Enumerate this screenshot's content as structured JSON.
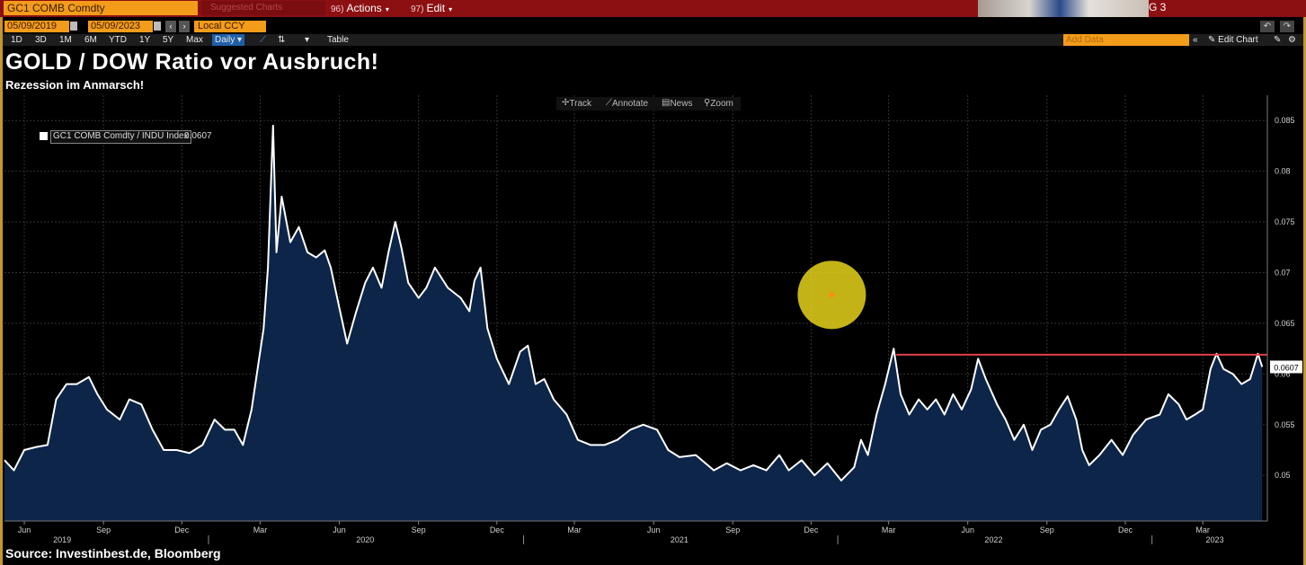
{
  "header": {
    "ticker": "GC1 COMB Comdty",
    "suggested": "Suggested Charts",
    "actions_num": "96)",
    "actions_label": "Actions",
    "edit_num": "97)",
    "edit_label": "Edit",
    "g_label": "G 3"
  },
  "datebar": {
    "start": "05/09/2019",
    "end": "05/09/2023",
    "currency": "Local CCY"
  },
  "rangebar": {
    "ranges": [
      "1D",
      "3D",
      "1M",
      "6M",
      "YTD",
      "1Y",
      "5Y",
      "Max"
    ],
    "frequency": "Daily",
    "table_label": "Table",
    "add_data": "Add Data",
    "edit_chart": "Edit Chart"
  },
  "chart_tools": [
    "Track",
    "Annotate",
    "News",
    "Zoom"
  ],
  "page": {
    "title": "GOLD / DOW Ratio vor Ausbruch!",
    "subtitle": "Rezession im Anmarsch!",
    "source": "Source: Investinbest.de, Bloomberg"
  },
  "colors": {
    "line": "#ffffff",
    "area": "#0c2548",
    "resistance": "#e0404a",
    "highlight": "#e6d21a",
    "command_bar": "#8c0f12",
    "amber": "#f39c1a"
  },
  "chart_data": {
    "type": "area",
    "title": "GOLD / DOW Ratio vor Ausbruch!",
    "subtitle": "Rezession im Anmarsch!",
    "series": [
      {
        "name": "GC1 COMB Comdty / INDU Index",
        "last_value": "0.0607",
        "points": [
          [
            "2019-05-09",
            0.0515
          ],
          [
            "2019-05-20",
            0.0505
          ],
          [
            "2019-06-01",
            0.0525
          ],
          [
            "2019-06-15",
            0.0528
          ],
          [
            "2019-06-28",
            0.053
          ],
          [
            "2019-07-08",
            0.0575
          ],
          [
            "2019-07-20",
            0.059
          ],
          [
            "2019-08-01",
            0.059
          ],
          [
            "2019-08-15",
            0.0597
          ],
          [
            "2019-08-25",
            0.058
          ],
          [
            "2019-09-05",
            0.0565
          ],
          [
            "2019-09-20",
            0.0555
          ],
          [
            "2019-10-01",
            0.0575
          ],
          [
            "2019-10-15",
            0.057
          ],
          [
            "2019-10-28",
            0.0545
          ],
          [
            "2019-11-10",
            0.0525
          ],
          [
            "2019-11-25",
            0.0525
          ],
          [
            "2019-12-10",
            0.0522
          ],
          [
            "2019-12-25",
            0.053
          ],
          [
            "2020-01-08",
            0.0555
          ],
          [
            "2020-01-20",
            0.0545
          ],
          [
            "2020-01-31",
            0.0545
          ],
          [
            "2020-02-10",
            0.053
          ],
          [
            "2020-02-20",
            0.0565
          ],
          [
            "2020-02-27",
            0.0605
          ],
          [
            "2020-03-05",
            0.0645
          ],
          [
            "2020-03-10",
            0.0705
          ],
          [
            "2020-03-16",
            0.0845
          ],
          [
            "2020-03-20",
            0.072
          ],
          [
            "2020-03-26",
            0.0775
          ],
          [
            "2020-04-05",
            0.073
          ],
          [
            "2020-04-15",
            0.0745
          ],
          [
            "2020-04-25",
            0.072
          ],
          [
            "2020-05-05",
            0.0715
          ],
          [
            "2020-05-15",
            0.0722
          ],
          [
            "2020-05-22",
            0.0705
          ],
          [
            "2020-06-01",
            0.0665
          ],
          [
            "2020-06-10",
            0.063
          ],
          [
            "2020-06-20",
            0.066
          ],
          [
            "2020-07-01",
            0.069
          ],
          [
            "2020-07-10",
            0.0705
          ],
          [
            "2020-07-20",
            0.0685
          ],
          [
            "2020-07-28",
            0.072
          ],
          [
            "2020-08-05",
            0.075
          ],
          [
            "2020-08-12",
            0.0725
          ],
          [
            "2020-08-20",
            0.069
          ],
          [
            "2020-09-01",
            0.0675
          ],
          [
            "2020-09-10",
            0.0685
          ],
          [
            "2020-09-20",
            0.0705
          ],
          [
            "2020-10-05",
            0.0685
          ],
          [
            "2020-10-20",
            0.0675
          ],
          [
            "2020-10-30",
            0.0662
          ],
          [
            "2020-11-05",
            0.0692
          ],
          [
            "2020-11-12",
            0.0705
          ],
          [
            "2020-11-20",
            0.0645
          ],
          [
            "2020-12-01",
            0.0615
          ],
          [
            "2020-12-15",
            0.059
          ],
          [
            "2020-12-28",
            0.0622
          ],
          [
            "2021-01-06",
            0.0628
          ],
          [
            "2021-01-15",
            0.059
          ],
          [
            "2021-01-25",
            0.0595
          ],
          [
            "2021-02-05",
            0.0575
          ],
          [
            "2021-02-20",
            0.056
          ],
          [
            "2021-03-05",
            0.0535
          ],
          [
            "2021-03-20",
            0.053
          ],
          [
            "2021-04-05",
            0.053
          ],
          [
            "2021-04-20",
            0.0535
          ],
          [
            "2021-05-05",
            0.0545
          ],
          [
            "2021-05-20",
            0.055
          ],
          [
            "2021-06-05",
            0.0545
          ],
          [
            "2021-06-18",
            0.0525
          ],
          [
            "2021-07-01",
            0.0518
          ],
          [
            "2021-07-20",
            0.052
          ],
          [
            "2021-08-10",
            0.0505
          ],
          [
            "2021-08-25",
            0.0512
          ],
          [
            "2021-09-10",
            0.0505
          ],
          [
            "2021-09-25",
            0.051
          ],
          [
            "2021-10-10",
            0.0505
          ],
          [
            "2021-10-25",
            0.052
          ],
          [
            "2021-11-05",
            0.0505
          ],
          [
            "2021-11-20",
            0.0515
          ],
          [
            "2021-12-05",
            0.05
          ],
          [
            "2021-12-20",
            0.0512
          ],
          [
            "2022-01-05",
            0.0495
          ],
          [
            "2022-01-20",
            0.0508
          ],
          [
            "2022-01-28",
            0.0535
          ],
          [
            "2022-02-05",
            0.052
          ],
          [
            "2022-02-15",
            0.056
          ],
          [
            "2022-02-25",
            0.059
          ],
          [
            "2022-03-07",
            0.0625
          ],
          [
            "2022-03-15",
            0.058
          ],
          [
            "2022-03-25",
            0.056
          ],
          [
            "2022-04-05",
            0.0575
          ],
          [
            "2022-04-15",
            0.0565
          ],
          [
            "2022-04-25",
            0.0575
          ],
          [
            "2022-05-05",
            0.056
          ],
          [
            "2022-05-15",
            0.058
          ],
          [
            "2022-05-25",
            0.0565
          ],
          [
            "2022-06-05",
            0.0585
          ],
          [
            "2022-06-13",
            0.0615
          ],
          [
            "2022-06-22",
            0.0595
          ],
          [
            "2022-07-05",
            0.057
          ],
          [
            "2022-07-15",
            0.0555
          ],
          [
            "2022-07-25",
            0.0535
          ],
          [
            "2022-08-05",
            0.055
          ],
          [
            "2022-08-15",
            0.0525
          ],
          [
            "2022-08-25",
            0.0545
          ],
          [
            "2022-09-05",
            0.055
          ],
          [
            "2022-09-15",
            0.0565
          ],
          [
            "2022-09-25",
            0.0578
          ],
          [
            "2022-10-05",
            0.0555
          ],
          [
            "2022-10-12",
            0.0525
          ],
          [
            "2022-10-20",
            0.051
          ],
          [
            "2022-11-01",
            0.052
          ],
          [
            "2022-11-15",
            0.0535
          ],
          [
            "2022-11-28",
            0.052
          ],
          [
            "2022-12-10",
            0.054
          ],
          [
            "2022-12-25",
            0.0555
          ],
          [
            "2023-01-10",
            0.056
          ],
          [
            "2023-01-20",
            0.058
          ],
          [
            "2023-02-01",
            0.057
          ],
          [
            "2023-02-10",
            0.0555
          ],
          [
            "2023-02-20",
            0.056
          ],
          [
            "2023-03-01",
            0.0565
          ],
          [
            "2023-03-10",
            0.0605
          ],
          [
            "2023-03-17",
            0.062
          ],
          [
            "2023-03-25",
            0.0605
          ],
          [
            "2023-04-05",
            0.06
          ],
          [
            "2023-04-15",
            0.059
          ],
          [
            "2023-04-25",
            0.0595
          ],
          [
            "2023-05-04",
            0.062
          ],
          [
            "2023-05-09",
            0.0607
          ]
        ]
      }
    ],
    "ylim": [
      0.0455,
      0.0875
    ],
    "yticks": [
      0.05,
      0.055,
      0.06,
      0.065,
      0.07,
      0.075,
      0.08,
      0.085
    ],
    "ytick_labels": [
      "0.05",
      "0.055",
      "0.06",
      "0.065",
      "0.07",
      "0.075",
      "0.08",
      "0.085"
    ],
    "xlim": [
      "2019-05-09",
      "2023-05-15"
    ],
    "xticks": [
      {
        "date": "2019-06-01",
        "label": "Jun"
      },
      {
        "date": "2019-09-01",
        "label": "Sep"
      },
      {
        "date": "2019-12-01",
        "label": "Dec"
      },
      {
        "date": "2020-03-01",
        "label": "Mar"
      },
      {
        "date": "2020-06-01",
        "label": "Jun"
      },
      {
        "date": "2020-09-01",
        "label": "Sep"
      },
      {
        "date": "2020-12-01",
        "label": "Dec"
      },
      {
        "date": "2021-03-01",
        "label": "Mar"
      },
      {
        "date": "2021-06-01",
        "label": "Jun"
      },
      {
        "date": "2021-09-01",
        "label": "Sep"
      },
      {
        "date": "2021-12-01",
        "label": "Dec"
      },
      {
        "date": "2022-03-01",
        "label": "Mar"
      },
      {
        "date": "2022-06-01",
        "label": "Jun"
      },
      {
        "date": "2022-09-01",
        "label": "Sep"
      },
      {
        "date": "2022-12-01",
        "label": "Dec"
      },
      {
        "date": "2023-03-01",
        "label": "Mar"
      }
    ],
    "years": [
      {
        "date": "2019-07-15",
        "label": "2019"
      },
      {
        "date": "2020-07-01",
        "label": "2020"
      },
      {
        "date": "2021-07-01",
        "label": "2021"
      },
      {
        "date": "2022-07-01",
        "label": "2022"
      },
      {
        "date": "2023-03-15",
        "label": "2023"
      }
    ],
    "year_boundaries": [
      "2020-01-01",
      "2021-01-01",
      "2022-01-01",
      "2023-01-01"
    ],
    "resistance_line": {
      "value": 0.0619,
      "start": "2022-03-10",
      "end": "2023-05-15"
    },
    "highlight_marker": {
      "date": "2021-12-25",
      "value": 0.0678
    },
    "grid": true,
    "legend_position": "top-left"
  }
}
